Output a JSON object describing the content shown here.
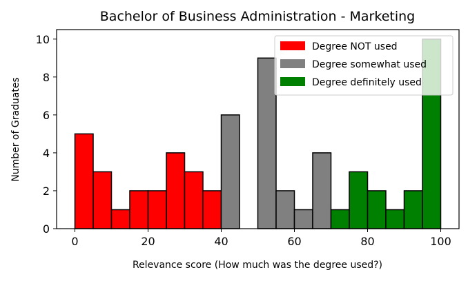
{
  "chart_data": {
    "type": "bar",
    "title": "Bachelor of Business Administration - Marketing",
    "xlabel": "Relevance score (How much was the degree used?)",
    "ylabel": "Number of Graduates",
    "xlim": [
      -5,
      105
    ],
    "ylim": [
      0,
      10.5
    ],
    "xticks": [
      0,
      20,
      40,
      60,
      80,
      100
    ],
    "yticks": [
      0,
      2,
      4,
      6,
      8,
      10
    ],
    "bin_width": 5,
    "legend_position": "top-right",
    "grid": false,
    "series": [
      {
        "name": "Degree NOT used",
        "color": "#ff0000",
        "bins": [
          {
            "x": 0,
            "count": 5
          },
          {
            "x": 5,
            "count": 3
          },
          {
            "x": 10,
            "count": 1
          },
          {
            "x": 15,
            "count": 2
          },
          {
            "x": 20,
            "count": 2
          },
          {
            "x": 25,
            "count": 4
          },
          {
            "x": 30,
            "count": 3
          },
          {
            "x": 35,
            "count": 2
          }
        ]
      },
      {
        "name": "Degree somewhat used",
        "color": "#808080",
        "bins": [
          {
            "x": 40,
            "count": 6
          },
          {
            "x": 50,
            "count": 9
          },
          {
            "x": 55,
            "count": 2
          },
          {
            "x": 60,
            "count": 1
          },
          {
            "x": 65,
            "count": 4
          }
        ]
      },
      {
        "name": "Degree definitely used",
        "color": "#008000",
        "bins": [
          {
            "x": 70,
            "count": 1
          },
          {
            "x": 75,
            "count": 3
          },
          {
            "x": 80,
            "count": 2
          },
          {
            "x": 85,
            "count": 1
          },
          {
            "x": 90,
            "count": 2
          },
          {
            "x": 95,
            "count": 10
          }
        ]
      }
    ]
  }
}
